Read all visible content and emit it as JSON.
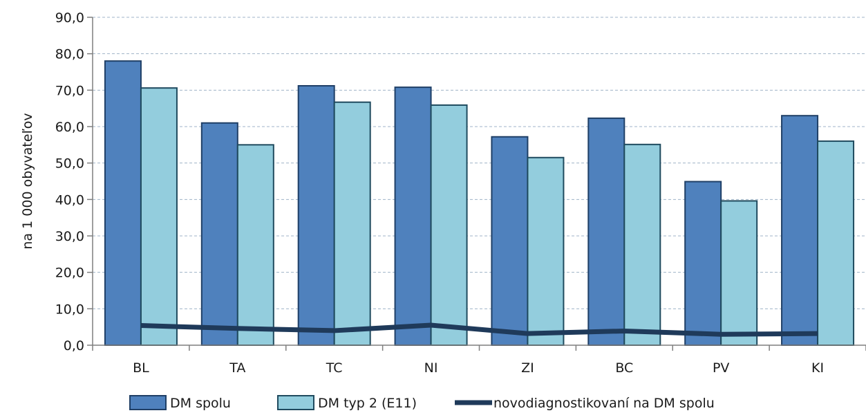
{
  "chart_data": {
    "type": "bar",
    "categories": [
      "BL",
      "TA",
      "TC",
      "NI",
      "ZI",
      "BC",
      "PV",
      "KI"
    ],
    "series": [
      {
        "name": "DM spolu",
        "type": "bar",
        "color": "#4f81bd",
        "stroke": "#1f3f66",
        "values": [
          78.0,
          61.0,
          71.2,
          70.8,
          57.2,
          62.3,
          44.9,
          63.0
        ]
      },
      {
        "name": "DM typ 2 (E11)",
        "type": "bar",
        "color": "#93cddd",
        "stroke": "#1f4a5e",
        "values": [
          70.6,
          55.0,
          66.7,
          65.9,
          51.5,
          55.1,
          39.6,
          56.0
        ]
      },
      {
        "name": "novodiagnostikovaní na DM spolu",
        "type": "line",
        "color": "#1f3a5a",
        "values": [
          5.4,
          4.6,
          4.0,
          5.5,
          3.2,
          3.9,
          3.0,
          3.2
        ]
      }
    ],
    "ylabel": "na 1 000 obyvateľov",
    "xlabel": "",
    "ylim": [
      0,
      90
    ],
    "yticks": [
      0,
      10,
      20,
      30,
      40,
      50,
      60,
      70,
      80,
      90
    ],
    "ytick_labels": [
      "0,0",
      "10,0",
      "20,0",
      "30,0",
      "40,0",
      "50,0",
      "60,0",
      "70,0",
      "80,0",
      "90,0"
    ],
    "grid": true,
    "legend_position": "bottom"
  }
}
